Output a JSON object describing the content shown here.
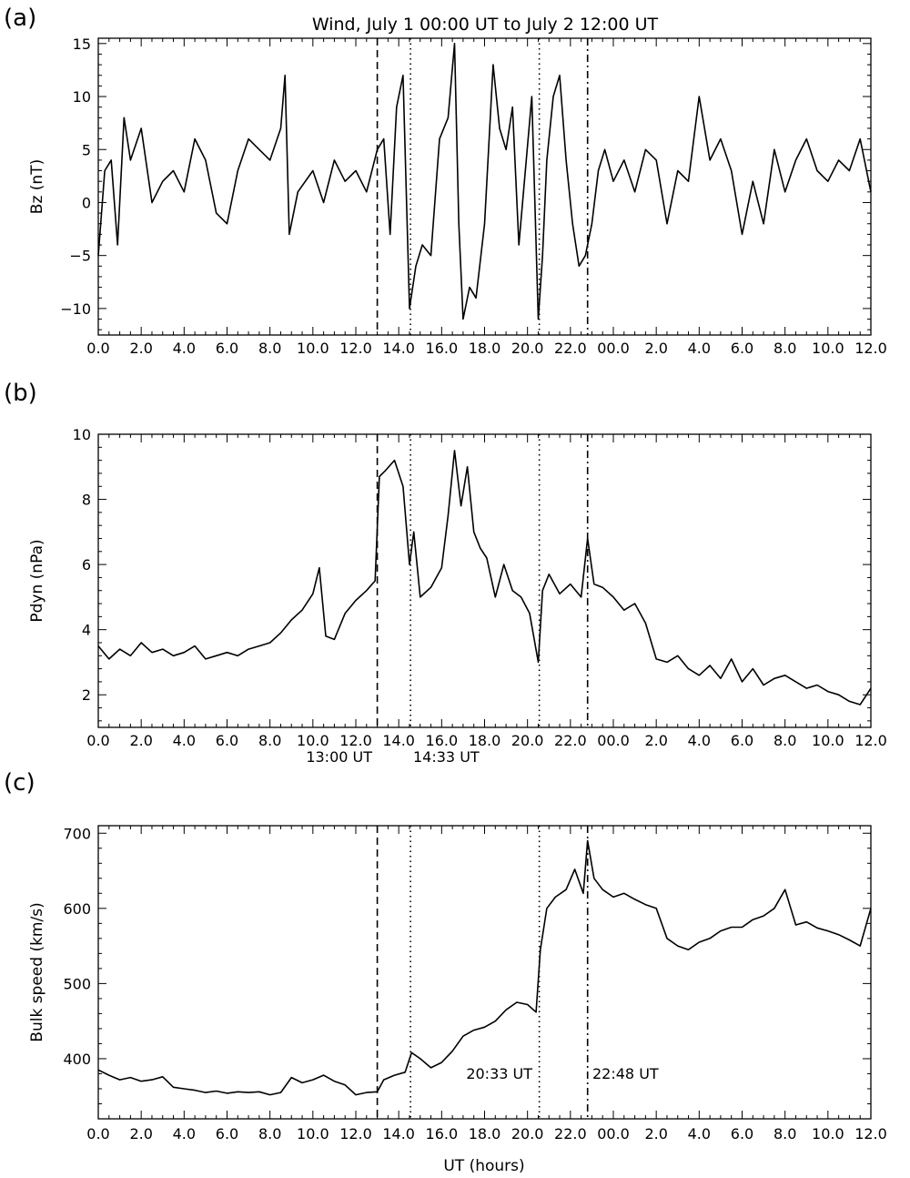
{
  "figure": {
    "title": "Wind, July 1 00:00 UT to July 2 12:00 UT",
    "xlabel": "UT (hours)"
  },
  "events": [
    {
      "time": 13.0,
      "style": "dashed",
      "label": "13:00 UT"
    },
    {
      "time": 14.55,
      "style": "dotted",
      "label": "14:33 UT"
    },
    {
      "time": 20.55,
      "style": "dotted",
      "label": "20:33 UT"
    },
    {
      "time": 22.8,
      "style": "dashdot",
      "label": "22:48 UT"
    }
  ],
  "chart_data": [
    {
      "panel_label": "(a)",
      "type": "line",
      "ylabel": "Bz (nT)",
      "xlim": [
        0,
        36
      ],
      "ylim": [
        -12.5,
        15.5
      ],
      "yticks": [
        -10,
        -5,
        0,
        5,
        10,
        15
      ],
      "xtick_labels": [
        "0.0",
        "2.0",
        "4.0",
        "6.0",
        "8.0",
        "10.0",
        "12.0",
        "14.0",
        "16.0",
        "18.0",
        "20.0",
        "22.0",
        "00.0",
        "2.0",
        "4.0",
        "6.0",
        "8.0",
        "10.0",
        "12.0"
      ],
      "series": [
        {
          "x": [
            0,
            0.3,
            0.6,
            0.9,
            1.2,
            1.5,
            2,
            2.5,
            3,
            3.5,
            4,
            4.5,
            5,
            5.5,
            6,
            6.5,
            7,
            7.5,
            8,
            8.5,
            8.7,
            8.9,
            9.3,
            10,
            10.5,
            11,
            11.5,
            12,
            12.5,
            13,
            13.3,
            13.6,
            13.9,
            14.2,
            14.5,
            14.8,
            15.1,
            15.5,
            15.9,
            16.3,
            16.6,
            16.8,
            17,
            17.3,
            17.6,
            18,
            18.4,
            18.7,
            19,
            19.3,
            19.6,
            19.9,
            20.2,
            20.5,
            20.7,
            20.9,
            21.2,
            21.5,
            21.8,
            22.1,
            22.4,
            22.7,
            23,
            23.3,
            23.6,
            24,
            24.5,
            25,
            25.5,
            26,
            26.5,
            27,
            27.5,
            28,
            28.5,
            29,
            29.5,
            30,
            30.5,
            31,
            31.5,
            32,
            32.5,
            33,
            33.5,
            34,
            34.5,
            35,
            35.5,
            36
          ],
          "values": [
            -5,
            3,
            4,
            -4,
            8,
            4,
            7,
            0,
            2,
            3,
            1,
            6,
            4,
            -1,
            -2,
            3,
            6,
            5,
            4,
            7,
            12,
            -3,
            1,
            3,
            0,
            4,
            2,
            3,
            1,
            5,
            6,
            -3,
            9,
            12,
            -10,
            -6,
            -4,
            -5,
            6,
            8,
            15,
            -2,
            -11,
            -8,
            -9,
            -2,
            13,
            7,
            5,
            9,
            -4,
            3,
            10,
            -11,
            -5,
            4,
            10,
            12,
            4,
            -2,
            -6,
            -5,
            -2,
            3,
            5,
            2,
            4,
            1,
            5,
            4,
            -2,
            3,
            2,
            10,
            4,
            6,
            3,
            -3,
            2,
            -2,
            5,
            1,
            4,
            6,
            3,
            2,
            4,
            3,
            6,
            1
          ]
        }
      ]
    },
    {
      "panel_label": "(b)",
      "type": "line",
      "ylabel": "Pdyn (nPa)",
      "xlim": [
        0,
        36
      ],
      "ylim": [
        1,
        10
      ],
      "yticks": [
        2,
        4,
        6,
        8,
        10
      ],
      "xtick_labels": [
        "0.0",
        "2.0",
        "4.0",
        "6.0",
        "8.0",
        "10.0",
        "12.0",
        "14.0",
        "16.0",
        "18.0",
        "20.0",
        "22.0",
        "00.0",
        "2.0",
        "4.0",
        "6.0",
        "8.0",
        "10.0",
        "12.0"
      ],
      "series": [
        {
          "x": [
            0,
            0.5,
            1,
            1.5,
            2,
            2.5,
            3,
            3.5,
            4,
            4.5,
            5,
            5.5,
            6,
            6.5,
            7,
            7.5,
            8,
            8.5,
            9,
            9.5,
            10,
            10.3,
            10.6,
            11,
            11.5,
            12,
            12.5,
            12.9,
            13.1,
            13.4,
            13.8,
            14.2,
            14.5,
            14.7,
            15,
            15.5,
            16,
            16.3,
            16.6,
            16.9,
            17.2,
            17.5,
            17.8,
            18.1,
            18.5,
            18.9,
            19.3,
            19.7,
            20.1,
            20.5,
            20.7,
            21,
            21.5,
            22,
            22.5,
            22.8,
            23.1,
            23.5,
            24,
            24.5,
            25,
            25.5,
            26,
            26.5,
            27,
            27.5,
            28,
            28.5,
            29,
            29.5,
            30,
            30.5,
            31,
            31.5,
            32,
            32.5,
            33,
            33.5,
            34,
            34.5,
            35,
            35.5,
            36
          ],
          "values": [
            3.5,
            3.1,
            3.4,
            3.2,
            3.6,
            3.3,
            3.4,
            3.2,
            3.3,
            3.5,
            3.1,
            3.2,
            3.3,
            3.2,
            3.4,
            3.5,
            3.6,
            3.9,
            4.3,
            4.6,
            5.1,
            5.9,
            3.8,
            3.7,
            4.5,
            4.9,
            5.2,
            5.5,
            8.7,
            8.9,
            9.2,
            8.4,
            6.0,
            7.0,
            5.0,
            5.3,
            5.9,
            7.5,
            9.5,
            7.8,
            9.0,
            7.0,
            6.5,
            6.2,
            5.0,
            6.0,
            5.2,
            5.0,
            4.5,
            3.0,
            5.2,
            5.7,
            5.1,
            5.4,
            5.0,
            6.8,
            5.4,
            5.3,
            5.0,
            4.6,
            4.8,
            4.2,
            3.1,
            3.0,
            3.2,
            2.8,
            2.6,
            2.9,
            2.5,
            3.1,
            2.4,
            2.8,
            2.3,
            2.5,
            2.6,
            2.4,
            2.2,
            2.3,
            2.1,
            2.0,
            1.8,
            1.7,
            2.2
          ]
        }
      ]
    },
    {
      "panel_label": "(c)",
      "type": "line",
      "ylabel": "Bulk speed (km/s)",
      "xlim": [
        0,
        36
      ],
      "ylim": [
        320,
        710
      ],
      "yticks": [
        400,
        500,
        600,
        700
      ],
      "xtick_labels": [
        "0.0",
        "2.0",
        "4.0",
        "6.0",
        "8.0",
        "10.0",
        "12.0",
        "14.0",
        "16.0",
        "18.0",
        "20.0",
        "22.0",
        "00.0",
        "2.0",
        "4.0",
        "6.0",
        "8.0",
        "10.0",
        "12.0"
      ],
      "series": [
        {
          "x": [
            0,
            0.5,
            1,
            1.5,
            2,
            2.5,
            3,
            3.5,
            4,
            4.5,
            5,
            5.5,
            6,
            6.5,
            7,
            7.5,
            8,
            8.5,
            9,
            9.5,
            10,
            10.5,
            11,
            11.5,
            12,
            12.5,
            13,
            13.3,
            13.8,
            14.3,
            14.6,
            15,
            15.5,
            16,
            16.5,
            17,
            17.5,
            18,
            18.5,
            19,
            19.5,
            20,
            20.4,
            20.6,
            20.9,
            21.3,
            21.8,
            22.2,
            22.6,
            22.8,
            23.1,
            23.5,
            24,
            24.5,
            25,
            25.5,
            26,
            26.5,
            27,
            27.5,
            28,
            28.5,
            29,
            29.5,
            30,
            30.5,
            31,
            31.5,
            32,
            32.5,
            33,
            33.5,
            34,
            34.5,
            35,
            35.5,
            36
          ],
          "values": [
            385,
            378,
            372,
            375,
            370,
            372,
            376,
            362,
            360,
            358,
            355,
            357,
            354,
            356,
            355,
            356,
            352,
            355,
            375,
            368,
            372,
            378,
            370,
            365,
            352,
            355,
            356,
            372,
            378,
            382,
            408,
            400,
            388,
            395,
            410,
            430,
            438,
            442,
            450,
            465,
            475,
            472,
            462,
            545,
            600,
            615,
            625,
            652,
            620,
            690,
            640,
            625,
            615,
            620,
            612,
            605,
            600,
            560,
            550,
            545,
            555,
            560,
            570,
            575,
            575,
            585,
            590,
            600,
            625,
            578,
            582,
            574,
            570,
            565,
            558,
            550,
            600
          ]
        }
      ]
    }
  ]
}
